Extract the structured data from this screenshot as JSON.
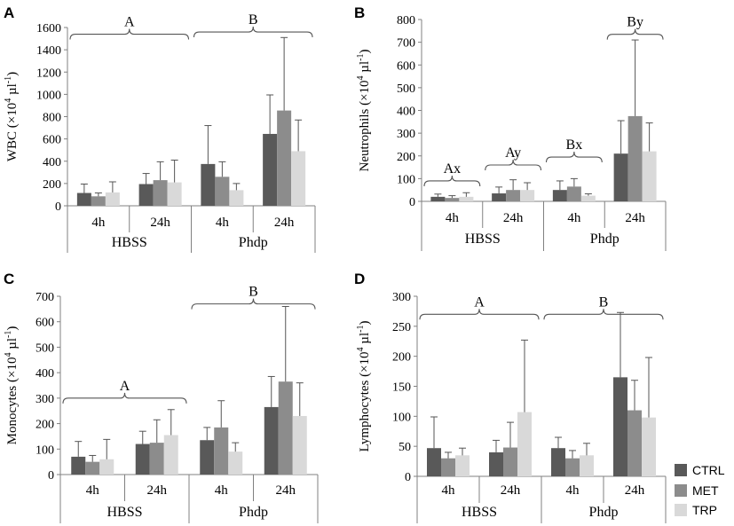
{
  "colors": {
    "CTRL": "#595959",
    "MET": "#8c8c8c",
    "TRP": "#d9d9d9"
  },
  "legend": [
    "CTRL",
    "MET",
    "TRP"
  ],
  "chart_data": [
    {
      "id": "A",
      "type": "bar",
      "panel_letter": "A",
      "ylabel_main": "WBC (×10",
      "ylabel_sup1": "4",
      "ylabel_mid": " µl",
      "ylabel_sup2": "-1",
      "ylabel_end": ")",
      "ylim": [
        0,
        1600
      ],
      "yticks": [
        0,
        200,
        400,
        600,
        800,
        1000,
        1200,
        1400,
        1600
      ],
      "tick_labels": [
        "0",
        "200",
        "400",
        "600",
        "800",
        "1000",
        "1200",
        "1400",
        "1600"
      ],
      "categories": [
        "4h",
        "24h",
        "4h",
        "24h"
      ],
      "groups": [
        "HBSS",
        "Phdp"
      ],
      "series": [
        {
          "name": "CTRL",
          "values": [
            115,
            195,
            375,
            645
          ],
          "errors": [
            80,
            95,
            345,
            350
          ]
        },
        {
          "name": "MET",
          "values": [
            85,
            230,
            260,
            855
          ],
          "errors": [
            30,
            165,
            135,
            655
          ]
        },
        {
          "name": "TRP",
          "values": [
            120,
            210,
            140,
            490
          ],
          "errors": [
            95,
            200,
            60,
            280
          ]
        }
      ],
      "annotations": [
        {
          "label": "A",
          "from": 0,
          "to": 1,
          "y": 1540
        },
        {
          "label": "B",
          "from": 2,
          "to": 3,
          "y": 1560
        }
      ]
    },
    {
      "id": "B",
      "type": "bar",
      "panel_letter": "B",
      "ylabel_main": "Neutrophils (×10",
      "ylabel_sup1": "4",
      "ylabel_mid": " µl",
      "ylabel_sup2": "-1",
      "ylabel_end": ")",
      "ylim": [
        0,
        800
      ],
      "yticks": [
        0,
        100,
        200,
        300,
        400,
        500,
        600,
        700,
        800
      ],
      "tick_labels": [
        "0",
        "100",
        "200",
        "300",
        "400",
        "500",
        "600",
        "700",
        "800"
      ],
      "categories": [
        "4h",
        "24h",
        "4h",
        "24h"
      ],
      "groups": [
        "HBSS",
        "Phdp"
      ],
      "series": [
        {
          "name": "CTRL",
          "values": [
            20,
            35,
            50,
            210
          ],
          "errors": [
            12,
            28,
            40,
            145
          ]
        },
        {
          "name": "MET",
          "values": [
            15,
            50,
            65,
            375
          ],
          "errors": [
            10,
            45,
            35,
            335
          ]
        },
        {
          "name": "TRP",
          "values": [
            20,
            50,
            25,
            220
          ],
          "errors": [
            18,
            32,
            8,
            125
          ]
        }
      ],
      "annotations": [
        {
          "label": "Ax",
          "from": 0,
          "to": 0,
          "y": 90
        },
        {
          "label": "Ay",
          "from": 1,
          "to": 1,
          "y": 160
        },
        {
          "label": "Bx",
          "from": 2,
          "to": 2,
          "y": 195
        },
        {
          "label": "By",
          "from": 3,
          "to": 3,
          "y": 735
        }
      ]
    },
    {
      "id": "C",
      "type": "bar",
      "panel_letter": "C",
      "ylabel_main": "Monocytes (×10",
      "ylabel_sup1": "4",
      "ylabel_mid": " µl",
      "ylabel_sup2": "-1",
      "ylabel_end": ")",
      "ylim": [
        0,
        700
      ],
      "yticks": [
        0,
        100,
        200,
        300,
        400,
        500,
        600,
        700
      ],
      "tick_labels": [
        "0",
        "100",
        "200",
        "300",
        "400",
        "500",
        "600",
        "700"
      ],
      "categories": [
        "4h",
        "24h",
        "4h",
        "24h"
      ],
      "groups": [
        "HBSS",
        "Phdp"
      ],
      "series": [
        {
          "name": "CTRL",
          "values": [
            70,
            120,
            135,
            265
          ],
          "errors": [
            60,
            50,
            50,
            120
          ]
        },
        {
          "name": "MET",
          "values": [
            50,
            125,
            185,
            365
          ],
          "errors": [
            25,
            90,
            105,
            295
          ]
        },
        {
          "name": "TRP",
          "values": [
            60,
            155,
            90,
            230
          ],
          "errors": [
            78,
            100,
            35,
            130
          ]
        }
      ],
      "annotations": [
        {
          "label": "A",
          "from": 0,
          "to": 1,
          "y": 300
        },
        {
          "label": "B",
          "from": 2,
          "to": 3,
          "y": 670
        }
      ]
    },
    {
      "id": "D",
      "type": "bar",
      "panel_letter": "D",
      "ylabel_main": "Lymphocytes (×10",
      "ylabel_sup1": "4",
      "ylabel_mid": " µl",
      "ylabel_sup2": "-1",
      "ylabel_end": ")",
      "ylim": [
        0,
        300
      ],
      "yticks": [
        0,
        50,
        100,
        150,
        200,
        250,
        300
      ],
      "tick_labels": [
        "0",
        "50",
        "100",
        "150",
        "200",
        "250",
        "300"
      ],
      "categories": [
        "4h",
        "24h",
        "4h",
        "24h"
      ],
      "groups": [
        "HBSS",
        "Phdp"
      ],
      "series": [
        {
          "name": "CTRL",
          "values": [
            47,
            40,
            47,
            165
          ],
          "errors": [
            52,
            20,
            18,
            108
          ]
        },
        {
          "name": "MET",
          "values": [
            30,
            48,
            30,
            110
          ],
          "errors": [
            10,
            42,
            13,
            50
          ]
        },
        {
          "name": "TRP",
          "values": [
            35,
            107,
            35,
            98
          ],
          "errors": [
            12,
            120,
            20,
            100
          ]
        }
      ],
      "annotations": [
        {
          "label": "A",
          "from": 0,
          "to": 1,
          "y": 270
        },
        {
          "label": "B",
          "from": 2,
          "to": 3,
          "y": 270
        }
      ]
    }
  ]
}
